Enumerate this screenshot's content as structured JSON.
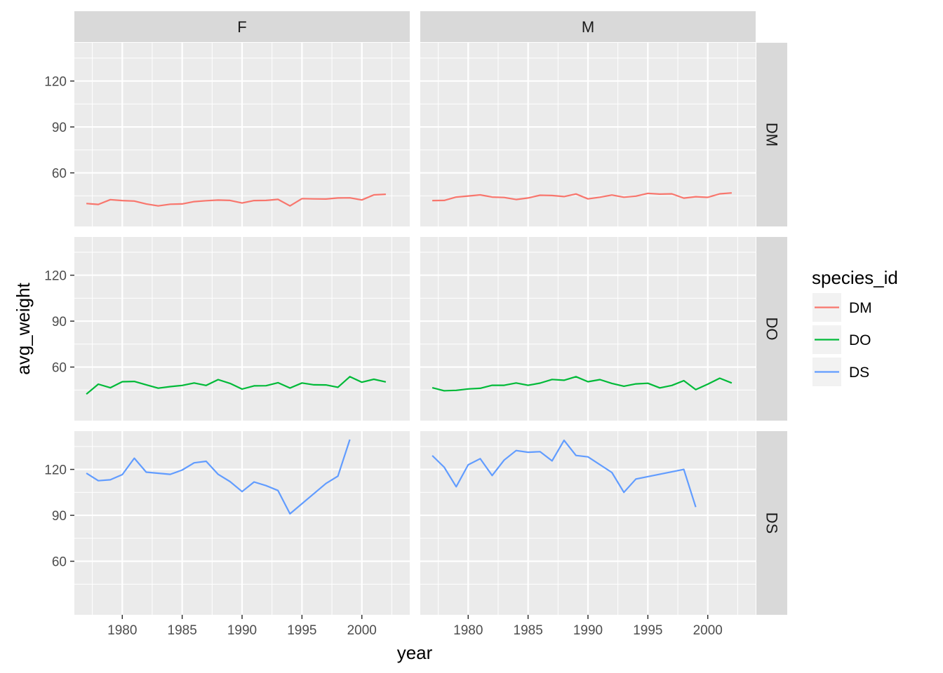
{
  "chart_data": {
    "type": "line",
    "facet_columns": [
      "F",
      "M"
    ],
    "facet_rows": [
      "DM",
      "DO",
      "DS"
    ],
    "xlabel": "year",
    "ylabel": "avg_weight",
    "xlim": [
      1976,
      2004
    ],
    "ylim": [
      25,
      145
    ],
    "xticks": [
      1980,
      1985,
      1990,
      1995,
      2000
    ],
    "yticks": [
      60,
      90,
      120
    ],
    "legend": {
      "title": "species_id",
      "placement": "right",
      "entries": [
        {
          "name": "DM",
          "color": "#F8766D"
        },
        {
          "name": "DO",
          "color": "#00BA38"
        },
        {
          "name": "DS",
          "color": "#619CFF"
        }
      ]
    },
    "colors": {
      "DM": "#F8766D",
      "DO": "#00BA38",
      "DS": "#619CFF"
    },
    "panels": [
      {
        "col": "F",
        "row": "DM",
        "series": "DM",
        "x": [
          1977,
          1978,
          1979,
          1980,
          1981,
          1982,
          1983,
          1984,
          1985,
          1986,
          1987,
          1988,
          1989,
          1990,
          1991,
          1992,
          1993,
          1994,
          1995,
          1996,
          1997,
          1998,
          1999,
          2000,
          2001,
          2002
        ],
        "y": [
          40.0,
          39.4,
          42.5,
          41.9,
          41.6,
          39.7,
          38.4,
          39.5,
          39.7,
          41.2,
          41.8,
          42.2,
          42.0,
          40.3,
          41.9,
          42.0,
          42.7,
          38.4,
          43.2,
          43.0,
          42.9,
          43.6,
          43.7,
          42.3,
          45.6,
          46.0
        ]
      },
      {
        "col": "M",
        "row": "DM",
        "series": "DM",
        "x": [
          1977,
          1978,
          1979,
          1980,
          1981,
          1982,
          1983,
          1984,
          1985,
          1986,
          1987,
          1988,
          1989,
          1990,
          1991,
          1992,
          1993,
          1994,
          1995,
          1996,
          1997,
          1998,
          1999,
          2000,
          2001,
          2002
        ],
        "y": [
          41.9,
          42.0,
          44.2,
          44.9,
          45.6,
          44.2,
          43.9,
          42.6,
          43.6,
          45.4,
          45.2,
          44.5,
          46.2,
          43.0,
          44.1,
          45.5,
          44.1,
          44.8,
          46.6,
          46.1,
          46.3,
          43.5,
          44.4,
          44.0,
          46.3,
          46.9
        ]
      },
      {
        "col": "F",
        "row": "DO",
        "series": "DO",
        "x": [
          1977,
          1978,
          1979,
          1980,
          1981,
          1982,
          1983,
          1984,
          1985,
          1986,
          1987,
          1988,
          1989,
          1990,
          1991,
          1992,
          1993,
          1994,
          1995,
          1996,
          1997,
          1998,
          1999,
          2000,
          2001,
          2002
        ],
        "y": [
          42.3,
          48.8,
          46.5,
          50.4,
          50.6,
          48.4,
          46.2,
          47.2,
          48.0,
          49.6,
          48.0,
          51.8,
          49.3,
          45.6,
          47.7,
          47.8,
          49.8,
          46.3,
          49.6,
          48.4,
          48.3,
          46.8,
          53.7,
          50.1,
          52.0,
          50.3
        ]
      },
      {
        "col": "M",
        "row": "DO",
        "series": "DO",
        "x": [
          1977,
          1978,
          1979,
          1980,
          1981,
          1982,
          1983,
          1984,
          1985,
          1986,
          1987,
          1988,
          1989,
          1990,
          1991,
          1992,
          1993,
          1994,
          1995,
          1996,
          1997,
          1998,
          1999,
          2000,
          2001,
          2002
        ],
        "y": [
          46.5,
          44.5,
          44.8,
          45.7,
          46.1,
          48.1,
          48.1,
          49.6,
          48.1,
          49.5,
          51.9,
          51.4,
          53.7,
          50.4,
          51.8,
          49.3,
          47.5,
          49.0,
          49.4,
          46.4,
          48.0,
          51.1,
          45.3,
          48.8,
          52.7,
          49.6
        ]
      },
      {
        "col": "F",
        "row": "DS",
        "series": "DS",
        "x": [
          1977,
          1978,
          1979,
          1980,
          1981,
          1982,
          1984,
          1985,
          1986,
          1987,
          1988,
          1989,
          1990,
          1991,
          1992,
          1993,
          1994,
          1997,
          1998,
          1999
        ],
        "y": [
          117.5,
          112.6,
          113.2,
          116.6,
          127.3,
          118.2,
          116.8,
          119.6,
          124.3,
          125.3,
          116.8,
          112.0,
          105.5,
          111.8,
          109.4,
          106.2,
          91.0,
          110.8,
          115.6,
          139.5
        ]
      },
      {
        "col": "M",
        "row": "DS",
        "series": "DS",
        "x": [
          1977,
          1978,
          1979,
          1980,
          1981,
          1982,
          1983,
          1984,
          1985,
          1986,
          1987,
          1988,
          1989,
          1990,
          1992,
          1993,
          1994,
          1998,
          1999
        ],
        "y": [
          129.0,
          121.4,
          108.7,
          123.0,
          127.0,
          116.0,
          126.1,
          132.3,
          131.2,
          131.6,
          125.6,
          139.0,
          129.1,
          128.2,
          118.0,
          105.0,
          113.7,
          120.0,
          95.4
        ]
      }
    ]
  }
}
